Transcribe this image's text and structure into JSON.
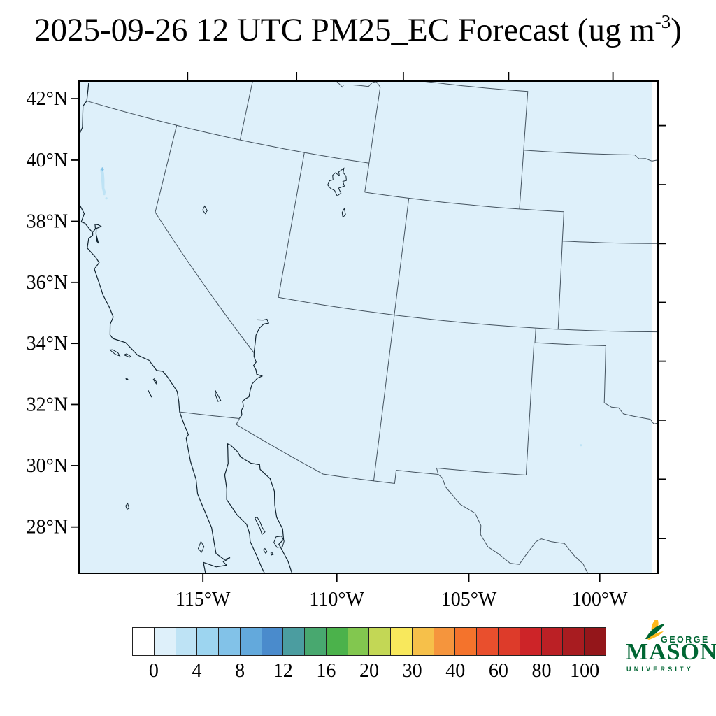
{
  "title": {
    "main": "2025-09-26 12 UTC PM25_EC Forecast (ug m",
    "sup": "-3",
    "close": ")"
  },
  "axes": {
    "lat_labels": [
      "42°N",
      "40°N",
      "38°N",
      "36°N",
      "34°N",
      "32°N",
      "30°N",
      "28°N"
    ],
    "lon_labels": [
      "115°W",
      "110°W",
      "105°W",
      "100°W"
    ]
  },
  "colorbar": {
    "labels": [
      "0",
      "4",
      "8",
      "12",
      "16",
      "20",
      "30",
      "40",
      "60",
      "80",
      "100"
    ],
    "colors": [
      "#ffffff",
      "#def0fa",
      "#bee3f5",
      "#9dd5f0",
      "#82c2e8",
      "#63a9dc",
      "#4a8bcc",
      "#4b9da0",
      "#48a86f",
      "#4bb24b",
      "#82c74f",
      "#c3d755",
      "#f8e85c",
      "#f6c04a",
      "#f5953d",
      "#f4732c",
      "#e94f2d",
      "#dd3b2a",
      "#cd2428",
      "#bb2025",
      "#a81c20",
      "#94161a"
    ]
  },
  "logo": {
    "george": "GEORGE",
    "mason": "MASON",
    "university": "UNIVERSITY",
    "green": "#006633",
    "gold": "#ffb81c"
  },
  "chart_data": {
    "type": "heatmap",
    "title": "2025-09-26 12 UTC PM25_EC Forecast (ug m-3)",
    "variable": "PM25_EC",
    "units": "ug m-3",
    "region": "Southwestern United States and northern Mexico (Lambert conformal map)",
    "xlabel": "longitude",
    "ylabel": "latitude",
    "x_ticks": [
      "115°W",
      "110°W",
      "105°W",
      "100°W"
    ],
    "y_ticks": [
      "42°N",
      "40°N",
      "38°N",
      "36°N",
      "34°N",
      "32°N",
      "30°N",
      "28°N"
    ],
    "colorbar_labels": [
      0,
      4,
      8,
      12,
      16,
      20,
      30,
      40,
      60,
      80,
      100
    ],
    "colorbar_cell_edges": [
      "below 0",
      0,
      2,
      4,
      6,
      8,
      10,
      12,
      14,
      16,
      18,
      20,
      25,
      30,
      35,
      40,
      50,
      60,
      70,
      80,
      90,
      100,
      "above 100"
    ],
    "colorbar_colors": [
      "#ffffff",
      "#def0fa",
      "#bee3f5",
      "#9dd5f0",
      "#82c2e8",
      "#63a9dc",
      "#4a8bcc",
      "#4b9da0",
      "#48a86f",
      "#4bb24b",
      "#82c74f",
      "#c3d755",
      "#f8e85c",
      "#f6c04a",
      "#f5953d",
      "#f4732c",
      "#e94f2d",
      "#dd3b2a",
      "#cd2428",
      "#bb2025",
      "#a81c20",
      "#94161a"
    ],
    "field_summary": "Concentration is nearly uniform in the lowest bin 0-2 ug m-3 (palest blue) over the whole domain; a small 2-8 ug m-3 plume appears in northern California near 39.9N 122.7W; a narrow white (no-data) strip runs along the right map edge.",
    "legend_position": "bottom",
    "grid": false
  }
}
